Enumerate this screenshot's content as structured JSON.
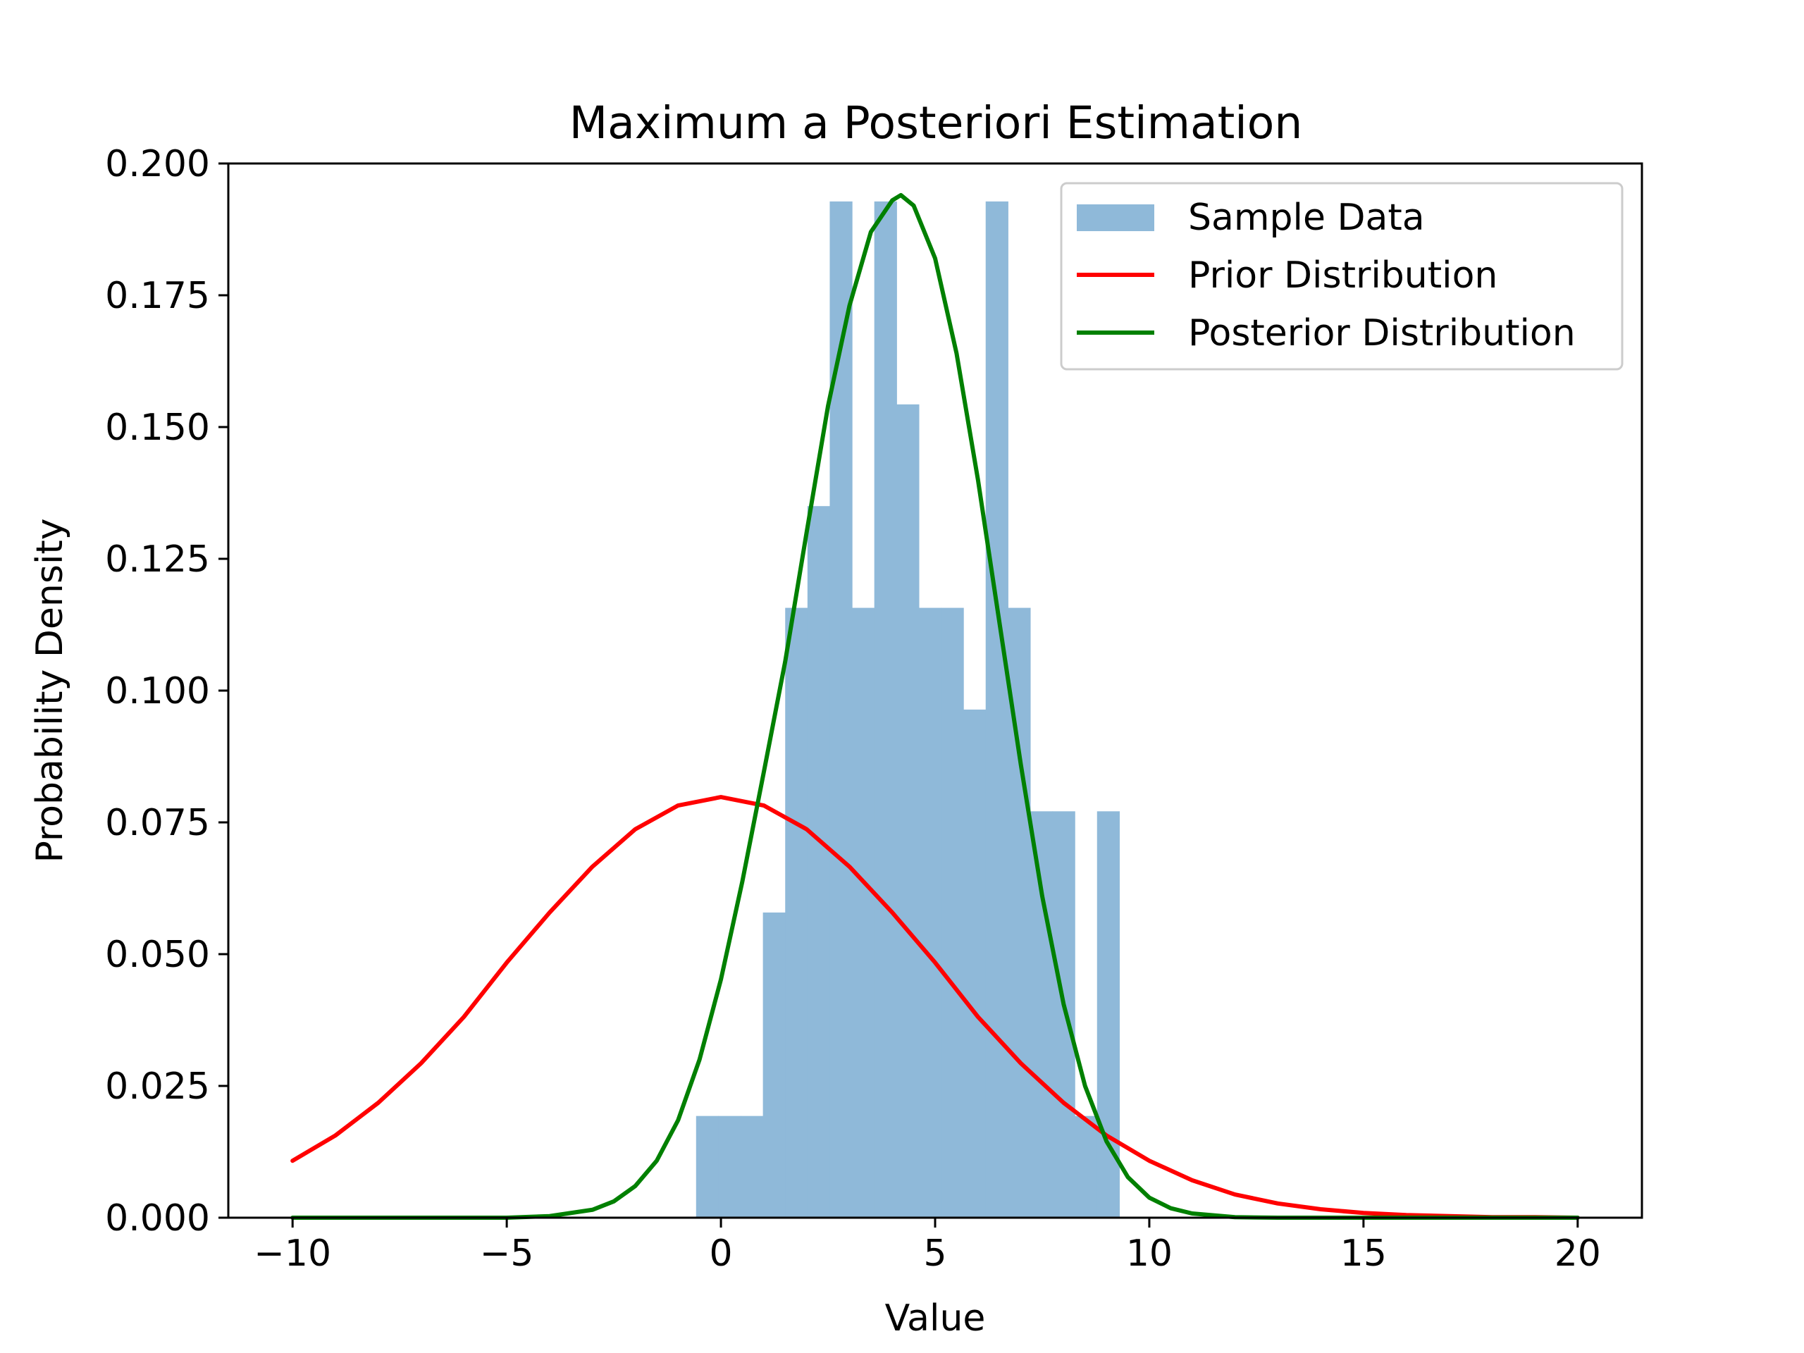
{
  "chart_data": {
    "type": "histogram+line",
    "title": "Maximum a Posteriori Estimation",
    "xlabel": "Value",
    "ylabel": "Probability Density",
    "xlim": [
      -11.5,
      21.5
    ],
    "ylim": [
      0,
      0.2
    ],
    "xticks": [
      -10,
      -5,
      0,
      5,
      10,
      15,
      20
    ],
    "xtick_labels": [
      "−10",
      "−5",
      "0",
      "5",
      "10",
      "15",
      "20"
    ],
    "yticks": [
      0,
      0.025,
      0.05,
      0.075,
      0.1,
      0.125,
      0.15,
      0.175,
      0.2
    ],
    "ytick_labels": [
      "0.000",
      "0.025",
      "0.050",
      "0.075",
      "0.100",
      "0.125",
      "0.150",
      "0.175",
      "0.200"
    ],
    "grid": false,
    "legend_position": "top-right",
    "histogram": {
      "name": "Sample Data",
      "color": "#8fb9d9",
      "bin_edges": [
        -0.58,
        -0.06,
        0.46,
        0.98,
        1.5,
        2.02,
        2.54,
        3.06,
        3.58,
        4.1,
        4.62,
        5.14,
        5.66,
        6.18,
        6.7,
        7.22,
        7.74,
        8.26,
        8.78,
        9.3,
        9.82
      ],
      "densities": [
        0.0193,
        0.0193,
        0.0193,
        0.0579,
        0.1157,
        0.135,
        0.1928,
        0.1157,
        0.1928,
        0.1543,
        0.1157,
        0.1157,
        0.0964,
        0.1928,
        0.1157,
        0.0771,
        0.0771,
        0.0193,
        0.0771,
        0.0
      ]
    },
    "series": [
      {
        "name": "Prior Distribution",
        "color": "#ff0000",
        "x": [
          -10,
          -9,
          -8,
          -7,
          -6,
          -5,
          -4,
          -3,
          -2,
          -1,
          0,
          1,
          2,
          3,
          4,
          5,
          6,
          7,
          8,
          9,
          10,
          11,
          12,
          13,
          14,
          15,
          16,
          17,
          18,
          19,
          20
        ],
        "y": [
          0.0108,
          0.0156,
          0.0218,
          0.0293,
          0.0381,
          0.0484,
          0.0579,
          0.0666,
          0.0737,
          0.0782,
          0.0798,
          0.0782,
          0.0737,
          0.0666,
          0.0579,
          0.0484,
          0.0381,
          0.0293,
          0.0218,
          0.0156,
          0.0108,
          0.0071,
          0.0044,
          0.0027,
          0.0016,
          0.0009,
          0.0005,
          0.0003,
          0.0001,
          0.0001,
          0.0
        ]
      },
      {
        "name": "Posterior Distribution",
        "color": "#008000",
        "x": [
          -10,
          -5,
          -4,
          -3,
          -2.5,
          -2,
          -1.5,
          -1,
          -0.5,
          0,
          0.5,
          1,
          1.5,
          2,
          2.5,
          3,
          3.5,
          4,
          4.2,
          4.5,
          5,
          5.5,
          6,
          6.5,
          7,
          7.5,
          8,
          8.5,
          9,
          9.5,
          10,
          10.5,
          11,
          12,
          13,
          15,
          20
        ],
        "y": [
          0.0,
          0.0,
          0.0003,
          0.0015,
          0.0031,
          0.006,
          0.0108,
          0.0185,
          0.03,
          0.0452,
          0.0638,
          0.0845,
          0.1055,
          0.13,
          0.154,
          0.173,
          0.187,
          0.193,
          0.194,
          0.192,
          0.182,
          0.164,
          0.14,
          0.113,
          0.086,
          0.061,
          0.0405,
          0.025,
          0.0145,
          0.0077,
          0.0038,
          0.0018,
          0.0008,
          0.0001,
          0.0,
          0.0,
          0.0
        ]
      }
    ]
  }
}
